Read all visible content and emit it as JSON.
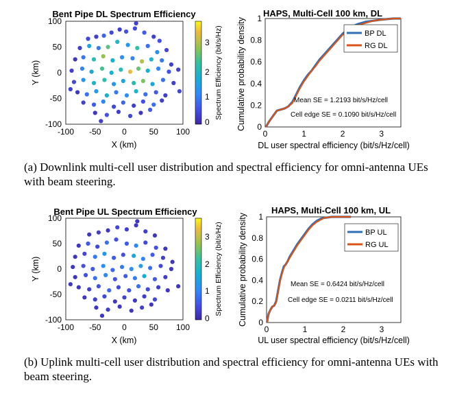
{
  "captions": {
    "a": "(a) Downlink multi-cell user distribution and spectral efficiency for omni-antenna UEs with beam steering.",
    "b": "(b) Uplink multi-cell user distribution and spectral efficiency for omni-antenna UEs with beam steering."
  },
  "colors": {
    "bp": "#2f6fb5",
    "rg": "#d95319"
  },
  "chart_data": [
    {
      "id": "dl_scatter",
      "type": "scatter",
      "title": "Bent Pipe DL Spectrum Efficiency",
      "xlabel": "X (km)",
      "ylabel": "Y (km)",
      "xlim": [
        -100,
        100
      ],
      "ylim": [
        -100,
        100
      ],
      "xticks": [
        "-100",
        "-50",
        "0",
        "50",
        "100"
      ],
      "yticks": [
        "100",
        "50",
        "0",
        "-50",
        "-100"
      ],
      "colorbar": {
        "label": "Spectrum Efficiency (bit/s/Hz)",
        "range": [
          0,
          3.5
        ],
        "ticks": [
          "3",
          "2",
          "1",
          "0"
        ]
      },
      "points": [
        [
          -62,
          66,
          0.4
        ],
        [
          -48,
          70,
          0.3
        ],
        [
          -35,
          72,
          0.7
        ],
        [
          -22,
          78,
          0.4
        ],
        [
          -8,
          84,
          0.3
        ],
        [
          3,
          80,
          0.5
        ],
        [
          18,
          86,
          0.4
        ],
        [
          34,
          78,
          0.6
        ],
        [
          50,
          70,
          0.3
        ],
        [
          60,
          62,
          0.5
        ],
        [
          -76,
          48,
          0.3
        ],
        [
          -60,
          52,
          1.4
        ],
        [
          -44,
          48,
          0.9
        ],
        [
          -28,
          50,
          2.3
        ],
        [
          -12,
          60,
          1.8
        ],
        [
          6,
          54,
          1.2
        ],
        [
          22,
          48,
          2.0
        ],
        [
          40,
          52,
          0.8
        ],
        [
          56,
          40,
          1.1
        ],
        [
          72,
          44,
          0.4
        ],
        [
          -84,
          26,
          0.2
        ],
        [
          -70,
          30,
          0.9
        ],
        [
          -52,
          26,
          1.9
        ],
        [
          -36,
          32,
          2.6
        ],
        [
          -20,
          24,
          1.5
        ],
        [
          -4,
          30,
          1.1
        ],
        [
          14,
          28,
          1.0
        ],
        [
          30,
          22,
          2.8
        ],
        [
          46,
          26,
          1.7
        ],
        [
          64,
          24,
          0.9
        ],
        [
          80,
          16,
          0.3
        ],
        [
          -90,
          4,
          0.3
        ],
        [
          -72,
          8,
          1.0
        ],
        [
          -56,
          2,
          1.4
        ],
        [
          -38,
          8,
          2.2
        ],
        [
          -22,
          0,
          1.6
        ],
        [
          -6,
          6,
          1.9
        ],
        [
          10,
          2,
          3.1
        ],
        [
          24,
          8,
          2.4
        ],
        [
          40,
          4,
          1.6
        ],
        [
          58,
          8,
          1.0
        ],
        [
          76,
          2,
          0.5
        ],
        [
          92,
          6,
          0.3
        ],
        [
          -86,
          -18,
          0.4
        ],
        [
          -70,
          -14,
          1.2
        ],
        [
          -52,
          -20,
          1.7
        ],
        [
          -34,
          -14,
          2.0
        ],
        [
          -18,
          -22,
          1.2
        ],
        [
          -2,
          -16,
          1.4
        ],
        [
          16,
          -20,
          1.9
        ],
        [
          32,
          -16,
          2.5
        ],
        [
          48,
          -22,
          1.4
        ],
        [
          66,
          -14,
          0.8
        ],
        [
          84,
          -20,
          0.3
        ],
        [
          -80,
          -38,
          0.2
        ],
        [
          -64,
          -42,
          0.8
        ],
        [
          -48,
          -36,
          1.3
        ],
        [
          -30,
          -44,
          1.6
        ],
        [
          -14,
          -38,
          0.9
        ],
        [
          4,
          -44,
          1.1
        ],
        [
          20,
          -36,
          1.7
        ],
        [
          36,
          -42,
          0.8
        ],
        [
          54,
          -38,
          0.6
        ],
        [
          70,
          -44,
          0.3
        ],
        [
          -70,
          -58,
          0.3
        ],
        [
          -52,
          -62,
          0.6
        ],
        [
          -36,
          -56,
          1.0
        ],
        [
          -18,
          -66,
          0.4
        ],
        [
          -2,
          -58,
          0.7
        ],
        [
          16,
          -64,
          0.3
        ],
        [
          32,
          -56,
          0.5
        ],
        [
          50,
          -62,
          0.8
        ],
        [
          64,
          -54,
          0.3
        ],
        [
          -50,
          -78,
          0.2
        ],
        [
          -30,
          -82,
          0.5
        ],
        [
          -10,
          -76,
          0.3
        ],
        [
          10,
          -84,
          0.4
        ],
        [
          28,
          -78,
          0.2
        ],
        [
          44,
          -72,
          0.6
        ],
        [
          -92,
          -32,
          0.3
        ],
        [
          94,
          -36,
          0.4
        ],
        [
          -40,
          -94,
          0.3
        ],
        [
          20,
          96,
          0.3
        ]
      ]
    },
    {
      "id": "dl_cdf",
      "type": "line",
      "title": "HAPS, Multi-Cell 100 km, DL",
      "xlabel": "DL user spectral efficiency (bit/s/Hz/cell)",
      "ylabel": "Cumulative probability density",
      "xlim": [
        0,
        3.5
      ],
      "ylim": [
        0,
        1
      ],
      "xticks": [
        "0",
        "1",
        "2",
        "3"
      ],
      "yticks": [
        "0",
        "0.2",
        "0.4",
        "0.6",
        "0.8",
        "1"
      ],
      "annotations": [
        "Mean SE = 1.2193 bit/s/Hz/cell",
        "Cell edge SE = 0.1090 bit/s/Hz/cell"
      ],
      "series": [
        {
          "name": "BP DL",
          "x": [
            0.02,
            0.1,
            0.2,
            0.3,
            0.4,
            0.5,
            0.6,
            0.7,
            0.8,
            0.9,
            1.0,
            1.1,
            1.2,
            1.3,
            1.4,
            1.5,
            1.6,
            1.7,
            1.8,
            1.9,
            2.0,
            2.1,
            2.2,
            2.4,
            2.6,
            2.8,
            3.0,
            3.3,
            3.5
          ],
          "y": [
            0,
            0.05,
            0.1,
            0.15,
            0.16,
            0.17,
            0.19,
            0.23,
            0.3,
            0.37,
            0.43,
            0.48,
            0.52,
            0.57,
            0.62,
            0.66,
            0.7,
            0.74,
            0.78,
            0.82,
            0.86,
            0.89,
            0.92,
            0.95,
            0.97,
            0.98,
            0.99,
            1.0,
            1.0
          ]
        },
        {
          "name": "RG DL",
          "x": [
            0.02,
            0.1,
            0.2,
            0.3,
            0.4,
            0.5,
            0.6,
            0.7,
            0.8,
            0.9,
            1.0,
            1.1,
            1.2,
            1.3,
            1.4,
            1.5,
            1.6,
            1.7,
            1.8,
            1.9,
            2.0,
            2.1,
            2.2,
            2.4,
            2.6,
            2.8,
            3.0,
            3.3,
            3.5
          ],
          "y": [
            0,
            0.05,
            0.1,
            0.15,
            0.16,
            0.17,
            0.19,
            0.22,
            0.29,
            0.36,
            0.42,
            0.47,
            0.52,
            0.56,
            0.61,
            0.65,
            0.69,
            0.73,
            0.77,
            0.81,
            0.85,
            0.88,
            0.91,
            0.94,
            0.96,
            0.98,
            0.99,
            1.0,
            1.0
          ]
        }
      ]
    },
    {
      "id": "ul_scatter",
      "type": "scatter",
      "title": "Bent Pipe UL Spectrum Efficiency",
      "xlabel": "X (km)",
      "ylabel": "Y (km)",
      "xlim": [
        -100,
        100
      ],
      "ylim": [
        -100,
        100
      ],
      "xticks": [
        "-100",
        "-50",
        "0",
        "50",
        "100"
      ],
      "yticks": [
        "100",
        "50",
        "0",
        "-50",
        "-100"
      ],
      "colorbar": {
        "label": "Spectrum Efficiency (bit/s/Hz)",
        "range": [
          0,
          3.5
        ],
        "ticks": [
          "3",
          "2",
          "1",
          "0"
        ]
      },
      "points": [
        [
          -60,
          68,
          0.2
        ],
        [
          -44,
          72,
          0.3
        ],
        [
          -28,
          76,
          0.2
        ],
        [
          -12,
          82,
          0.4
        ],
        [
          4,
          78,
          0.3
        ],
        [
          20,
          86,
          0.2
        ],
        [
          36,
          74,
          0.3
        ],
        [
          52,
          66,
          0.2
        ],
        [
          -78,
          46,
          0.2
        ],
        [
          -62,
          50,
          0.6
        ],
        [
          -46,
          44,
          0.4
        ],
        [
          -30,
          52,
          0.8
        ],
        [
          -14,
          58,
          0.5
        ],
        [
          4,
          50,
          0.6
        ],
        [
          20,
          46,
          1.0
        ],
        [
          36,
          52,
          0.4
        ],
        [
          54,
          42,
          0.5
        ],
        [
          70,
          40,
          0.2
        ],
        [
          -84,
          24,
          0.2
        ],
        [
          -68,
          30,
          0.4
        ],
        [
          -50,
          24,
          0.9
        ],
        [
          -34,
          30,
          1.2
        ],
        [
          -18,
          22,
          0.6
        ],
        [
          -2,
          28,
          0.5
        ],
        [
          16,
          26,
          1.4
        ],
        [
          32,
          20,
          1.0
        ],
        [
          48,
          28,
          0.6
        ],
        [
          66,
          22,
          0.3
        ],
        [
          82,
          14,
          0.2
        ],
        [
          -88,
          4,
          0.2
        ],
        [
          -70,
          6,
          0.5
        ],
        [
          -54,
          0,
          0.6
        ],
        [
          -36,
          6,
          1.1
        ],
        [
          -20,
          -2,
          0.7
        ],
        [
          -4,
          4,
          0.9
        ],
        [
          12,
          0,
          1.1
        ],
        [
          28,
          6,
          1.3
        ],
        [
          44,
          2,
          0.8
        ],
        [
          62,
          6,
          0.4
        ],
        [
          80,
          0,
          0.2
        ],
        [
          -84,
          -16,
          0.2
        ],
        [
          -66,
          -12,
          0.5
        ],
        [
          -50,
          -18,
          0.8
        ],
        [
          -32,
          -12,
          1.0
        ],
        [
          -16,
          -20,
          0.5
        ],
        [
          2,
          -14,
          0.6
        ],
        [
          18,
          -18,
          0.9
        ],
        [
          34,
          -14,
          1.5
        ],
        [
          52,
          -20,
          0.6
        ],
        [
          70,
          -16,
          0.3
        ],
        [
          -78,
          -36,
          0.2
        ],
        [
          -60,
          -40,
          0.3
        ],
        [
          -44,
          -34,
          0.5
        ],
        [
          -26,
          -42,
          0.7
        ],
        [
          -10,
          -36,
          0.4
        ],
        [
          8,
          -42,
          0.5
        ],
        [
          24,
          -34,
          0.8
        ],
        [
          40,
          -40,
          0.4
        ],
        [
          58,
          -36,
          0.3
        ],
        [
          74,
          -42,
          0.2
        ],
        [
          -68,
          -56,
          0.2
        ],
        [
          -50,
          -60,
          0.3
        ],
        [
          -34,
          -54,
          0.4
        ],
        [
          -16,
          -64,
          0.2
        ],
        [
          0,
          -56,
          0.3
        ],
        [
          18,
          -62,
          0.2
        ],
        [
          34,
          -54,
          0.3
        ],
        [
          52,
          -60,
          0.4
        ],
        [
          -48,
          -76,
          0.2
        ],
        [
          -28,
          -80,
          0.3
        ],
        [
          -8,
          -74,
          0.2
        ],
        [
          12,
          -82,
          0.2
        ],
        [
          30,
          -76,
          0.3
        ],
        [
          46,
          -70,
          0.2
        ],
        [
          -92,
          -30,
          0.2
        ],
        [
          92,
          -34,
          0.2
        ],
        [
          -38,
          -92,
          0.2
        ],
        [
          22,
          94,
          0.2
        ]
      ]
    },
    {
      "id": "ul_cdf",
      "type": "line",
      "title": "HAPS, Multi-Cell 100 km, UL",
      "xlabel": "UL user spectral efficiency (bit/s/Hz/cell)",
      "ylabel": "Cumulative probability density",
      "xlim": [
        0,
        3.5
      ],
      "ylim": [
        0,
        1
      ],
      "xticks": [
        "0",
        "1",
        "2",
        "3"
      ],
      "yticks": [
        "0",
        "0.2",
        "0.4",
        "0.6",
        "0.8",
        "1"
      ],
      "annotations": [
        "Mean SE = 0.6424 bit/s/Hz/cell",
        "Cell edge SE = 0.0211 bit/s/Hz/cell"
      ],
      "series": [
        {
          "name": "BP UL",
          "x": [
            0.01,
            0.05,
            0.1,
            0.15,
            0.2,
            0.25,
            0.3,
            0.35,
            0.4,
            0.45,
            0.5,
            0.55,
            0.6,
            0.7,
            0.8,
            0.9,
            1.0,
            1.1,
            1.2,
            1.3,
            1.4,
            1.5,
            1.6,
            1.7,
            1.8,
            2.0,
            2.2
          ],
          "y": [
            0,
            0.08,
            0.12,
            0.15,
            0.16,
            0.2,
            0.3,
            0.4,
            0.47,
            0.53,
            0.55,
            0.58,
            0.62,
            0.68,
            0.74,
            0.79,
            0.84,
            0.89,
            0.93,
            0.96,
            0.98,
            0.99,
            0.995,
            1.0,
            1.0,
            1.0,
            1.0
          ]
        },
        {
          "name": "RG UL",
          "x": [
            0.01,
            0.05,
            0.1,
            0.15,
            0.2,
            0.25,
            0.3,
            0.35,
            0.4,
            0.45,
            0.5,
            0.55,
            0.6,
            0.7,
            0.8,
            0.9,
            1.0,
            1.1,
            1.2,
            1.3,
            1.4,
            1.5,
            1.6,
            1.7,
            1.8,
            2.0,
            2.2
          ],
          "y": [
            0,
            0.08,
            0.12,
            0.15,
            0.16,
            0.19,
            0.29,
            0.39,
            0.46,
            0.52,
            0.55,
            0.58,
            0.61,
            0.67,
            0.73,
            0.78,
            0.83,
            0.88,
            0.92,
            0.95,
            0.97,
            0.99,
            0.995,
            1.0,
            1.0,
            1.0,
            1.0
          ]
        }
      ]
    }
  ]
}
